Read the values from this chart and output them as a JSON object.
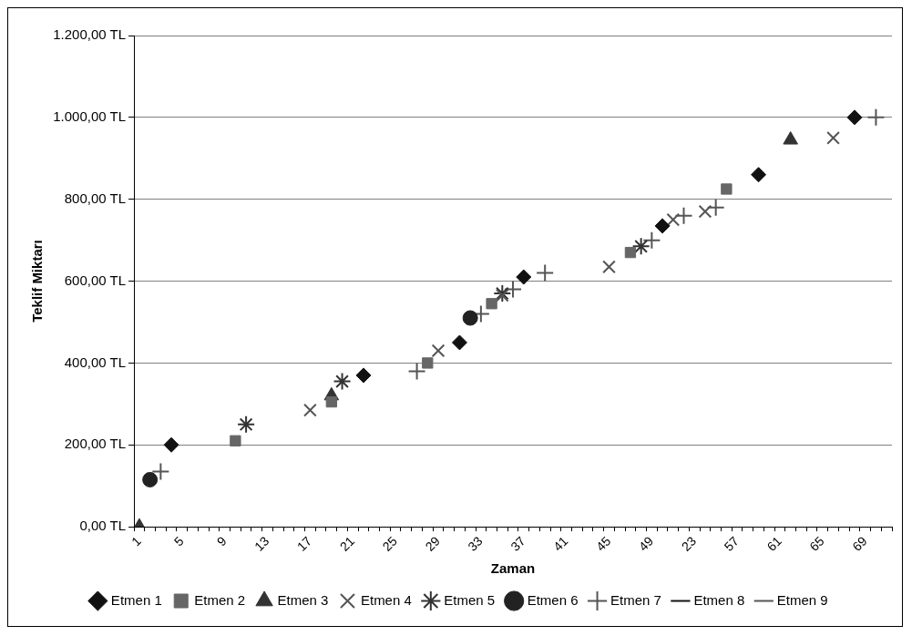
{
  "chart_data": {
    "type": "scatter",
    "xlabel": "Zaman",
    "ylabel": "Teklif Miktarı",
    "categories": [
      "1",
      null,
      null,
      null,
      "5",
      null,
      null,
      null,
      "9",
      null,
      null,
      null,
      "13",
      null,
      null,
      null,
      "17",
      null,
      null,
      null,
      "21",
      null,
      null,
      null,
      "25",
      null,
      null,
      null,
      "29",
      null,
      null,
      null,
      "33",
      null,
      null,
      null,
      "37",
      null,
      null,
      null,
      "41",
      null,
      null,
      null,
      "45",
      null,
      null,
      null,
      "49",
      null,
      null,
      null,
      "23",
      null,
      null,
      null,
      "57",
      null,
      null,
      null,
      "61",
      null,
      null,
      null,
      "65",
      null,
      null,
      null,
      "69",
      null,
      null
    ],
    "ylim": [
      0,
      1200
    ],
    "yticks": [
      {
        "value": 0,
        "label": "0,00 TL"
      },
      {
        "value": 200,
        "label": "200,00 TL"
      },
      {
        "value": 400,
        "label": "400,00 TL"
      },
      {
        "value": 600,
        "label": "600,00 TL"
      },
      {
        "value": 800,
        "label": "800,00 TL"
      },
      {
        "value": 1000,
        "label": "1.000,00 TL"
      },
      {
        "value": 1200,
        "label": "1.200,00 TL"
      }
    ],
    "grid": "y",
    "legend": "bottom",
    "series": [
      {
        "name": "Etmen 1",
        "color": "#111111",
        "marker": "diamond",
        "values": [
          null,
          null,
          null,
          200,
          null,
          null,
          null,
          null,
          null,
          null,
          null,
          null,
          null,
          null,
          null,
          null,
          null,
          null,
          null,
          null,
          null,
          370,
          null,
          null,
          null,
          null,
          null,
          null,
          null,
          null,
          450,
          null,
          null,
          null,
          null,
          null,
          610,
          null,
          null,
          null,
          null,
          null,
          null,
          null,
          null,
          null,
          null,
          null,
          null,
          735,
          null,
          null,
          null,
          null,
          null,
          null,
          null,
          null,
          860,
          null,
          null,
          null,
          null,
          null,
          null,
          null,
          null,
          1000,
          null,
          null,
          null
        ]
      },
      {
        "name": "Etmen 2",
        "color": "#666666",
        "marker": "square",
        "values": [
          null,
          null,
          null,
          null,
          null,
          null,
          null,
          null,
          null,
          210,
          null,
          null,
          null,
          null,
          null,
          null,
          null,
          null,
          305,
          null,
          null,
          null,
          null,
          null,
          null,
          null,
          null,
          400,
          null,
          null,
          null,
          null,
          null,
          545,
          null,
          null,
          null,
          null,
          null,
          null,
          null,
          null,
          null,
          null,
          null,
          null,
          670,
          null,
          null,
          null,
          null,
          null,
          null,
          null,
          null,
          825,
          null,
          null,
          null,
          null,
          null,
          null,
          null,
          null,
          null,
          null,
          null,
          null,
          null,
          null,
          null
        ]
      },
      {
        "name": "Etmen 3",
        "color": "#333333",
        "marker": "triangle",
        "values": [
          0,
          null,
          null,
          null,
          null,
          null,
          null,
          null,
          null,
          null,
          null,
          null,
          null,
          null,
          null,
          null,
          null,
          null,
          320,
          null,
          null,
          null,
          null,
          null,
          null,
          null,
          null,
          null,
          null,
          null,
          null,
          null,
          null,
          null,
          null,
          null,
          null,
          null,
          null,
          null,
          null,
          null,
          null,
          null,
          null,
          null,
          null,
          null,
          null,
          null,
          null,
          null,
          null,
          null,
          null,
          null,
          null,
          null,
          null,
          null,
          null,
          945,
          null,
          null,
          null,
          null,
          null,
          null,
          null,
          null,
          null
        ]
      },
      {
        "name": "Etmen 4",
        "color": "#555555",
        "marker": "x",
        "values": [
          null,
          null,
          null,
          null,
          null,
          null,
          null,
          null,
          null,
          null,
          null,
          null,
          null,
          null,
          null,
          null,
          285,
          null,
          null,
          null,
          null,
          null,
          null,
          null,
          null,
          null,
          null,
          null,
          430,
          null,
          null,
          null,
          null,
          null,
          565,
          null,
          null,
          null,
          null,
          null,
          null,
          null,
          null,
          null,
          635,
          null,
          null,
          null,
          null,
          null,
          750,
          null,
          null,
          770,
          null,
          null,
          null,
          null,
          null,
          null,
          null,
          null,
          null,
          null,
          null,
          950,
          null,
          null,
          null,
          null,
          null
        ]
      },
      {
        "name": "Etmen 5",
        "color": "#333333",
        "marker": "cross",
        "values": [
          null,
          null,
          null,
          null,
          null,
          null,
          null,
          null,
          null,
          null,
          250,
          null,
          null,
          null,
          null,
          null,
          null,
          null,
          null,
          355,
          null,
          null,
          null,
          null,
          null,
          null,
          null,
          null,
          null,
          null,
          null,
          null,
          null,
          null,
          570,
          null,
          null,
          null,
          null,
          null,
          null,
          null,
          null,
          null,
          null,
          null,
          null,
          685,
          null,
          null,
          null,
          null,
          null,
          null,
          null,
          null,
          null,
          null,
          null,
          null,
          null,
          null,
          null,
          null,
          null,
          null,
          null,
          null,
          null,
          null,
          null
        ]
      },
      {
        "name": "Etmen 6",
        "color": "#222222",
        "marker": "circle",
        "values": [
          null,
          115,
          null,
          null,
          null,
          null,
          null,
          null,
          null,
          null,
          null,
          null,
          null,
          null,
          null,
          null,
          null,
          null,
          null,
          null,
          null,
          null,
          null,
          null,
          null,
          null,
          null,
          null,
          null,
          null,
          null,
          510,
          null,
          null,
          null,
          null,
          null,
          null,
          null,
          null,
          null,
          null,
          null,
          null,
          null,
          null,
          null,
          null,
          null,
          null,
          null,
          null,
          null,
          null,
          null,
          null,
          null,
          null,
          null,
          null,
          null,
          null,
          null,
          null,
          null,
          null,
          null,
          null,
          null,
          null,
          null
        ]
      },
      {
        "name": "Etmen 7",
        "color": "#555555",
        "marker": "plus",
        "values": [
          null,
          null,
          135,
          null,
          null,
          null,
          null,
          null,
          null,
          null,
          null,
          null,
          null,
          null,
          null,
          null,
          null,
          null,
          null,
          null,
          null,
          null,
          null,
          null,
          null,
          null,
          380,
          null,
          null,
          null,
          null,
          null,
          520,
          null,
          null,
          580,
          null,
          null,
          620,
          null,
          null,
          null,
          null,
          null,
          null,
          null,
          null,
          null,
          700,
          null,
          null,
          760,
          null,
          null,
          780,
          null,
          null,
          null,
          null,
          null,
          null,
          null,
          null,
          null,
          null,
          null,
          null,
          null,
          null,
          1000,
          null
        ]
      },
      {
        "name": "Etmen 8",
        "color": "#111111",
        "marker": "dash",
        "values": [
          null,
          null,
          null,
          null,
          null,
          null,
          null,
          null,
          null,
          null,
          null,
          null,
          null,
          null,
          null,
          null,
          null,
          null,
          null,
          null,
          null,
          null,
          null,
          null,
          null,
          null,
          null,
          null,
          null,
          null,
          null,
          null,
          null,
          null,
          null,
          null,
          null,
          null,
          null,
          null,
          null,
          null,
          null,
          null,
          null,
          null,
          null,
          null,
          null,
          null,
          null,
          null,
          null,
          null,
          null,
          null,
          null,
          null,
          null,
          null,
          null,
          null,
          null,
          null,
          null,
          null,
          null,
          null,
          null,
          null,
          null
        ]
      },
      {
        "name": "Etmen 9",
        "color": "#555555",
        "marker": "dash",
        "values": [
          null,
          null,
          null,
          null,
          null,
          null,
          null,
          null,
          null,
          null,
          null,
          null,
          null,
          null,
          null,
          null,
          null,
          null,
          null,
          null,
          null,
          null,
          null,
          null,
          null,
          null,
          null,
          null,
          null,
          null,
          null,
          null,
          null,
          null,
          null,
          null,
          null,
          null,
          null,
          null,
          null,
          null,
          null,
          null,
          null,
          null,
          null,
          null,
          null,
          null,
          null,
          null,
          null,
          null,
          null,
          null,
          null,
          null,
          null,
          null,
          null,
          null,
          null,
          null,
          null,
          null,
          null,
          null,
          null,
          null,
          null
        ]
      }
    ]
  }
}
